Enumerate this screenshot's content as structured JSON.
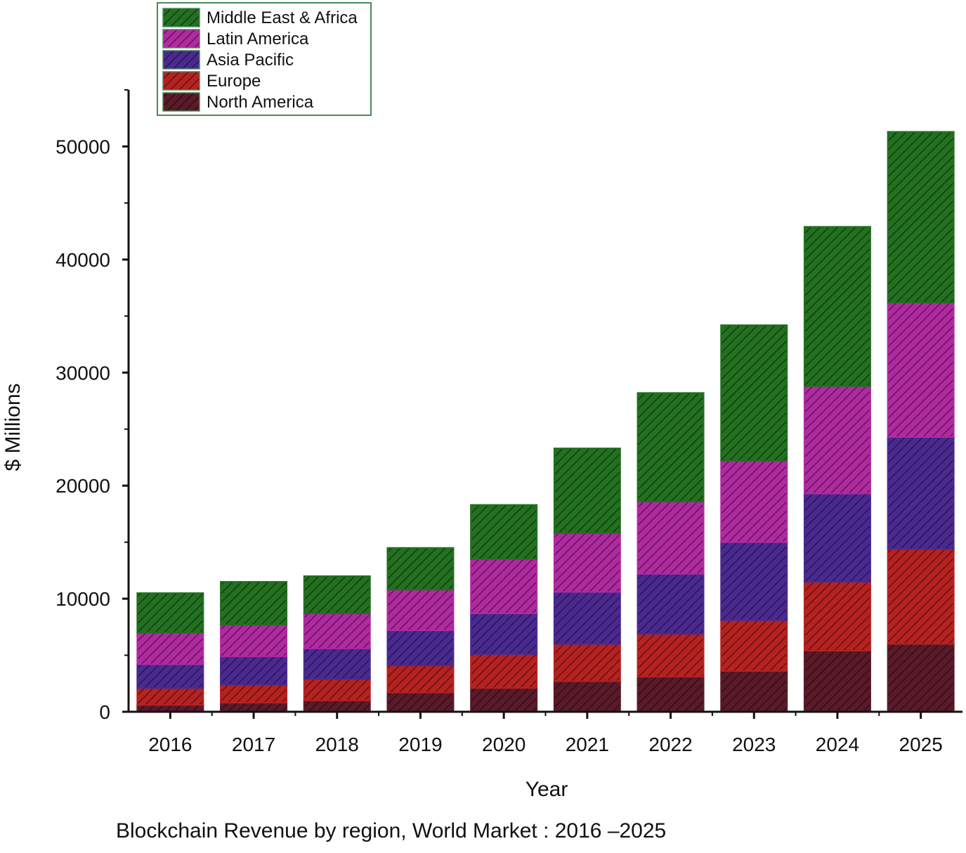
{
  "chart_data": {
    "type": "bar",
    "stacked": true,
    "title": "Blockchain Revenue by region, World Market : 2016 –2025",
    "xlabel": "Year",
    "ylabel": "$ Millions",
    "ylim": [
      0,
      55000
    ],
    "yticks": [
      0,
      10000,
      20000,
      30000,
      40000,
      50000
    ],
    "ytick_labels": [
      "0",
      "10000",
      "20000",
      "30000",
      "40000",
      "50000"
    ],
    "legend_position": "top-left",
    "categories": [
      "2016",
      "2017",
      "2018",
      "2019",
      "2020",
      "2021",
      "2022",
      "2023",
      "2024",
      "2025"
    ],
    "series": [
      {
        "name": "North America",
        "color": "#5a1a2a",
        "values": [
          600,
          800,
          1000,
          1700,
          2100,
          2700,
          3100,
          3600,
          5400,
          6000
        ]
      },
      {
        "name": "Europe",
        "color": "#b52220",
        "values": [
          1500,
          1600,
          1900,
          2400,
          3000,
          3300,
          3800,
          4500,
          6100,
          8400
        ]
      },
      {
        "name": "Asia Pacific",
        "color": "#4a2a90",
        "values": [
          2100,
          2500,
          2700,
          3100,
          3600,
          4600,
          5300,
          6900,
          7800,
          9900
        ]
      },
      {
        "name": "Latin America",
        "color": "#b02aa0",
        "values": [
          2800,
          2800,
          3100,
          3600,
          4800,
          5200,
          6400,
          7200,
          9500,
          11900
        ]
      },
      {
        "name": "Middle East & Africa",
        "color": "#237020",
        "values": [
          3500,
          3800,
          3300,
          3700,
          4800,
          7500,
          9600,
          12000,
          14100,
          15100
        ]
      }
    ]
  }
}
